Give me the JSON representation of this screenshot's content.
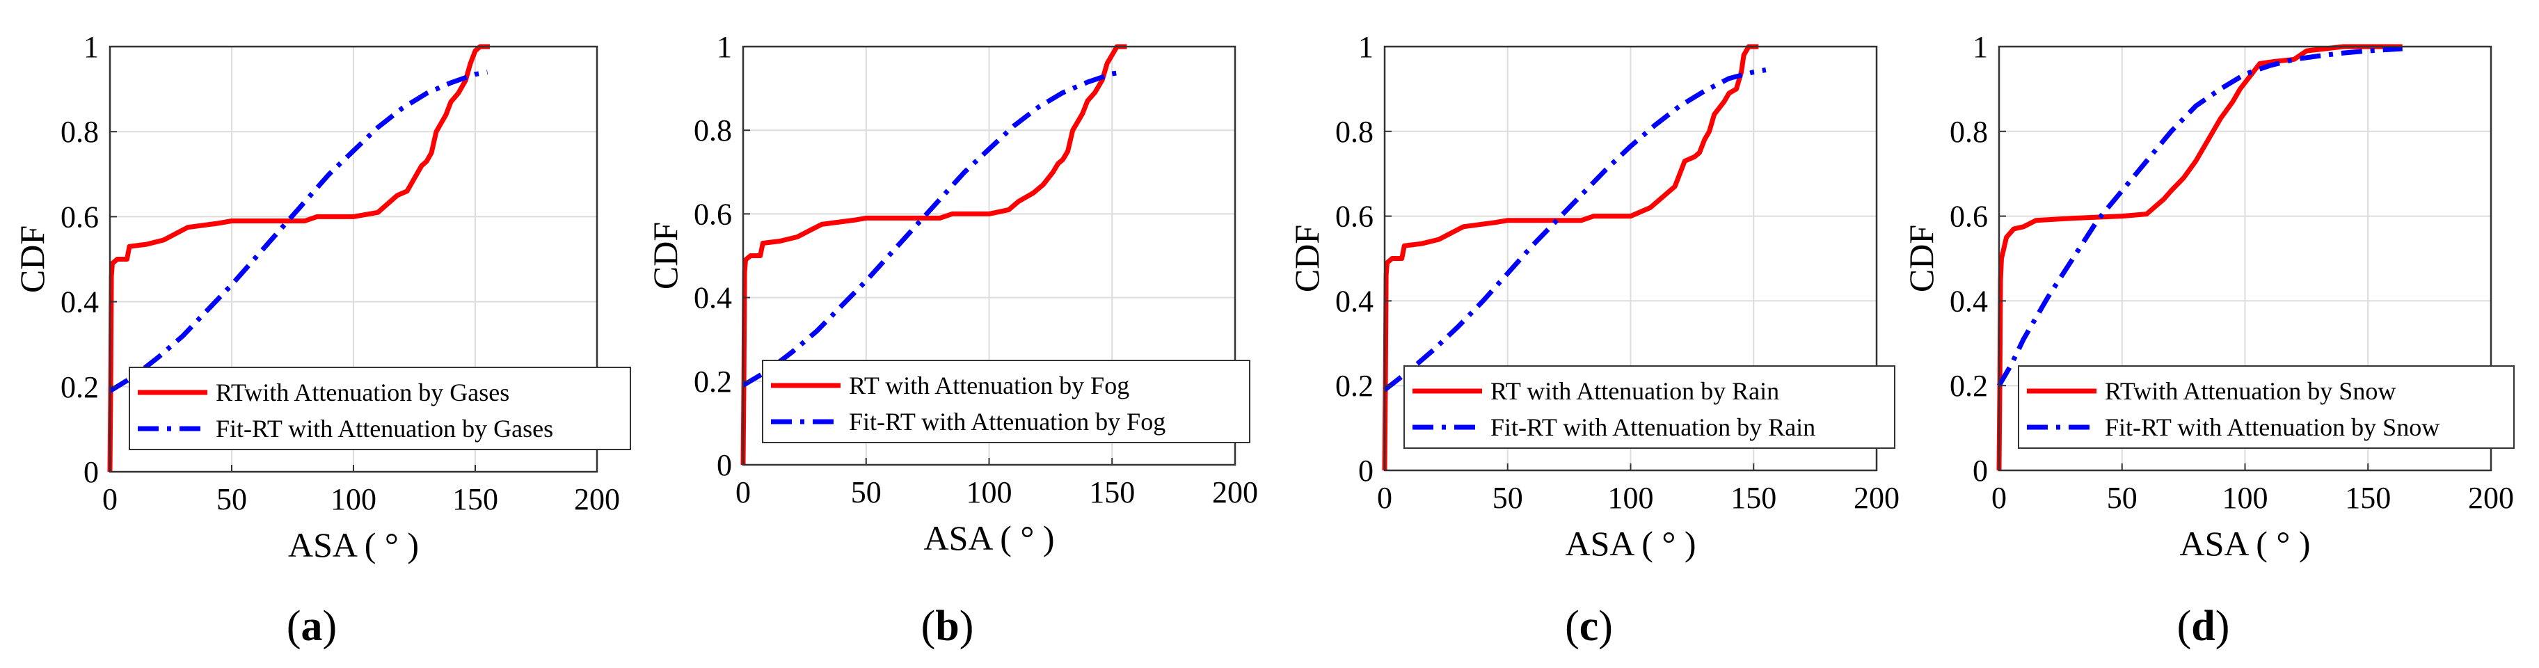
{
  "chart_data": [
    {
      "type": "line",
      "panel_label": "a",
      "xlabel": "ASA ( ° )",
      "ylabel": "CDF",
      "xlim": [
        0,
        200
      ],
      "ylim": [
        0,
        1
      ],
      "xticks": [
        "0",
        "50",
        "100",
        "150",
        "200"
      ],
      "yticks": [
        "0",
        "0.2",
        "0.4",
        "0.6",
        "0.8",
        "1"
      ],
      "grid": true,
      "legend_position": "bottom-left",
      "series": [
        {
          "name": "RTwith Attenuation by Gases",
          "color": "#ff0000",
          "style": "solid",
          "points": [
            [
              0,
              0
            ],
            [
              0.3,
              0.2
            ],
            [
              0.6,
              0.46
            ],
            [
              1,
              0.49
            ],
            [
              3,
              0.5
            ],
            [
              7,
              0.5
            ],
            [
              8,
              0.53
            ],
            [
              15,
              0.535
            ],
            [
              22,
              0.545
            ],
            [
              27,
              0.56
            ],
            [
              32,
              0.575
            ],
            [
              45,
              0.585
            ],
            [
              50,
              0.59
            ],
            [
              80,
              0.59
            ],
            [
              85,
              0.6
            ],
            [
              100,
              0.6
            ],
            [
              110,
              0.61
            ],
            [
              112,
              0.62
            ],
            [
              118,
              0.65
            ],
            [
              122,
              0.66
            ],
            [
              126,
              0.7
            ],
            [
              128,
              0.72
            ],
            [
              130,
              0.73
            ],
            [
              132,
              0.75
            ],
            [
              134,
              0.8
            ],
            [
              138,
              0.84
            ],
            [
              140,
              0.87
            ],
            [
              143,
              0.89
            ],
            [
              146,
              0.92
            ],
            [
              148,
              0.96
            ],
            [
              150,
              0.99
            ],
            [
              152,
              1.0
            ],
            [
              156,
              1.0
            ]
          ]
        },
        {
          "name": "Fit-RT with Attenuation by Gases",
          "color": "#0000ff",
          "style": "dashdot",
          "points": [
            [
              0,
              0.19
            ],
            [
              10,
              0.225
            ],
            [
              20,
              0.27
            ],
            [
              30,
              0.32
            ],
            [
              40,
              0.38
            ],
            [
              50,
              0.44
            ],
            [
              60,
              0.505
            ],
            [
              70,
              0.57
            ],
            [
              80,
              0.635
            ],
            [
              90,
              0.7
            ],
            [
              100,
              0.755
            ],
            [
              110,
              0.81
            ],
            [
              120,
              0.855
            ],
            [
              130,
              0.89
            ],
            [
              140,
              0.915
            ],
            [
              150,
              0.935
            ],
            [
              155,
              0.94
            ]
          ]
        }
      ]
    },
    {
      "type": "line",
      "panel_label": "b",
      "xlabel": "ASA ( ° )",
      "ylabel": "CDF",
      "xlim": [
        0,
        200
      ],
      "ylim": [
        0,
        1
      ],
      "xticks": [
        "0",
        "50",
        "100",
        "150",
        "200"
      ],
      "yticks": [
        "0",
        "0.2",
        "0.4",
        "0.6",
        "0.8",
        "1"
      ],
      "grid": true,
      "legend_position": "bottom-left",
      "series": [
        {
          "name": "RT with Attenuation by Fog",
          "color": "#ff0000",
          "style": "solid",
          "points": [
            [
              0,
              0
            ],
            [
              0.3,
              0.2
            ],
            [
              0.6,
              0.46
            ],
            [
              1,
              0.49
            ],
            [
              3,
              0.5
            ],
            [
              7,
              0.5
            ],
            [
              8,
              0.53
            ],
            [
              15,
              0.535
            ],
            [
              22,
              0.545
            ],
            [
              27,
              0.56
            ],
            [
              32,
              0.575
            ],
            [
              45,
              0.585
            ],
            [
              50,
              0.59
            ],
            [
              80,
              0.59
            ],
            [
              85,
              0.6
            ],
            [
              100,
              0.6
            ],
            [
              108,
              0.61
            ],
            [
              112,
              0.63
            ],
            [
              118,
              0.65
            ],
            [
              122,
              0.67
            ],
            [
              126,
              0.7
            ],
            [
              128,
              0.72
            ],
            [
              130,
              0.73
            ],
            [
              132,
              0.75
            ],
            [
              134,
              0.8
            ],
            [
              138,
              0.84
            ],
            [
              140,
              0.87
            ],
            [
              143,
              0.89
            ],
            [
              146,
              0.92
            ],
            [
              148,
              0.96
            ],
            [
              151,
              0.99
            ],
            [
              152,
              1.0
            ],
            [
              156,
              1.0
            ]
          ]
        },
        {
          "name": "Fit-RT with Attenuation by Fog",
          "color": "#0000ff",
          "style": "dashdot",
          "points": [
            [
              0,
              0.19
            ],
            [
              10,
              0.225
            ],
            [
              20,
              0.27
            ],
            [
              30,
              0.32
            ],
            [
              40,
              0.38
            ],
            [
              50,
              0.44
            ],
            [
              60,
              0.505
            ],
            [
              70,
              0.57
            ],
            [
              80,
              0.635
            ],
            [
              90,
              0.7
            ],
            [
              100,
              0.755
            ],
            [
              110,
              0.81
            ],
            [
              120,
              0.855
            ],
            [
              130,
              0.89
            ],
            [
              140,
              0.915
            ],
            [
              150,
              0.935
            ],
            [
              155,
              0.94
            ]
          ]
        }
      ]
    },
    {
      "type": "line",
      "panel_label": "c",
      "xlabel": "ASA ( ° )",
      "ylabel": "CDF",
      "xlim": [
        0,
        200
      ],
      "ylim": [
        0,
        1
      ],
      "xticks": [
        "0",
        "50",
        "100",
        "150",
        "200"
      ],
      "yticks": [
        "0",
        "0.2",
        "0.4",
        "0.6",
        "0.8",
        "1"
      ],
      "grid": true,
      "legend_position": "bottom-left",
      "series": [
        {
          "name": "RT with Attenuation by Rain",
          "color": "#ff0000",
          "style": "solid",
          "points": [
            [
              0,
              0
            ],
            [
              0.3,
              0.2
            ],
            [
              0.6,
              0.46
            ],
            [
              1,
              0.49
            ],
            [
              3,
              0.5
            ],
            [
              7,
              0.5
            ],
            [
              8,
              0.53
            ],
            [
              15,
              0.535
            ],
            [
              22,
              0.545
            ],
            [
              27,
              0.56
            ],
            [
              32,
              0.575
            ],
            [
              45,
              0.585
            ],
            [
              50,
              0.59
            ],
            [
              80,
              0.59
            ],
            [
              85,
              0.6
            ],
            [
              100,
              0.6
            ],
            [
              108,
              0.62
            ],
            [
              114,
              0.65
            ],
            [
              118,
              0.67
            ],
            [
              122,
              0.73
            ],
            [
              126,
              0.74
            ],
            [
              128,
              0.75
            ],
            [
              130,
              0.78
            ],
            [
              132,
              0.8
            ],
            [
              134,
              0.84
            ],
            [
              138,
              0.87
            ],
            [
              140,
              0.89
            ],
            [
              143,
              0.9
            ],
            [
              145,
              0.94
            ],
            [
              146,
              0.98
            ],
            [
              148,
              1.0
            ],
            [
              152,
              1.0
            ]
          ]
        },
        {
          "name": "Fit-RT with Attenuation by Rain",
          "color": "#0000ff",
          "style": "dashdot",
          "points": [
            [
              0,
              0.19
            ],
            [
              10,
              0.235
            ],
            [
              20,
              0.285
            ],
            [
              30,
              0.34
            ],
            [
              40,
              0.4
            ],
            [
              50,
              0.465
            ],
            [
              60,
              0.53
            ],
            [
              70,
              0.59
            ],
            [
              80,
              0.65
            ],
            [
              90,
              0.71
            ],
            [
              100,
              0.765
            ],
            [
              110,
              0.815
            ],
            [
              120,
              0.86
            ],
            [
              130,
              0.895
            ],
            [
              140,
              0.925
            ],
            [
              150,
              0.94
            ],
            [
              155,
              0.945
            ]
          ]
        }
      ]
    },
    {
      "type": "line",
      "panel_label": "d",
      "xlabel": "ASA ( ° )",
      "ylabel": "CDF",
      "xlim": [
        0,
        200
      ],
      "ylim": [
        0,
        1
      ],
      "xticks": [
        "0",
        "50",
        "100",
        "150",
        "200"
      ],
      "yticks": [
        "0",
        "0.2",
        "0.4",
        "0.6",
        "0.8",
        "1"
      ],
      "grid": true,
      "legend_position": "bottom-left",
      "series": [
        {
          "name": "RTwith Attenuation by Snow",
          "color": "#ff0000",
          "style": "solid",
          "points": [
            [
              0,
              0
            ],
            [
              0.3,
              0.2
            ],
            [
              0.6,
              0.45
            ],
            [
              1,
              0.5
            ],
            [
              3,
              0.55
            ],
            [
              6,
              0.57
            ],
            [
              10,
              0.575
            ],
            [
              15,
              0.59
            ],
            [
              30,
              0.595
            ],
            [
              50,
              0.6
            ],
            [
              60,
              0.605
            ],
            [
              63,
              0.62
            ],
            [
              67,
              0.64
            ],
            [
              70,
              0.66
            ],
            [
              75,
              0.69
            ],
            [
              80,
              0.73
            ],
            [
              85,
              0.78
            ],
            [
              90,
              0.83
            ],
            [
              95,
              0.87
            ],
            [
              98,
              0.9
            ],
            [
              102,
              0.93
            ],
            [
              106,
              0.96
            ],
            [
              112,
              0.965
            ],
            [
              120,
              0.97
            ],
            [
              125,
              0.99
            ],
            [
              140,
              1.0
            ],
            [
              164,
              1.0
            ]
          ]
        },
        {
          "name": "Fit-RT with Attenuation by Snow",
          "color": "#0000ff",
          "style": "dashdot",
          "points": [
            [
              0,
              0.2
            ],
            [
              5,
              0.25
            ],
            [
              10,
              0.31
            ],
            [
              20,
              0.41
            ],
            [
              30,
              0.5
            ],
            [
              40,
              0.59
            ],
            [
              50,
              0.66
            ],
            [
              60,
              0.73
            ],
            [
              70,
              0.8
            ],
            [
              80,
              0.86
            ],
            [
              90,
              0.9
            ],
            [
              100,
              0.935
            ],
            [
              110,
              0.955
            ],
            [
              120,
              0.97
            ],
            [
              130,
              0.978
            ],
            [
              140,
              0.985
            ],
            [
              150,
              0.99
            ],
            [
              164,
              0.995
            ]
          ]
        }
      ]
    }
  ]
}
